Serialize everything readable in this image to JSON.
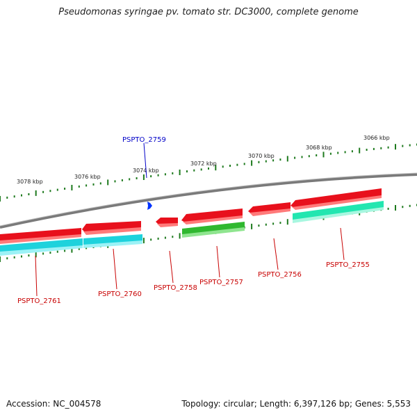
{
  "title": "Pseudomonas syringae pv. tomato str. DC3000, complete genome",
  "footer": {
    "accession": "Accession: NC_004578",
    "summary": "Topology: circular; Length: 6,397,126 bp; Genes: 5,553"
  },
  "colors": {
    "backbone": "#7a7a7a",
    "tick": "#1e7a1e",
    "gene_red": "#e8101c",
    "gene_cyan": "#1ed2dc",
    "gene_green": "#2fb82f",
    "gene_teal": "#22e6b0",
    "label_red": "#c80000",
    "label_blue": "#0000c8",
    "marker": "#0033ff"
  },
  "kbp_labels": [
    "3078 kbp",
    "3076 kbp",
    "3074 kbp",
    "3072 kbp",
    "3070 kbp",
    "3068 kbp",
    "3066 kbp"
  ],
  "gene_labels": [
    {
      "text": "PSPTO_2759",
      "color": "blue"
    },
    {
      "text": "PSPTO_2761",
      "color": "red"
    },
    {
      "text": "PSPTO_2760",
      "color": "red"
    },
    {
      "text": "PSPTO_2758",
      "color": "red"
    },
    {
      "text": "PSPTO_2757",
      "color": "red"
    },
    {
      "text": "PSPTO_2756",
      "color": "red"
    },
    {
      "text": "PSPTO_2755",
      "color": "red"
    }
  ]
}
